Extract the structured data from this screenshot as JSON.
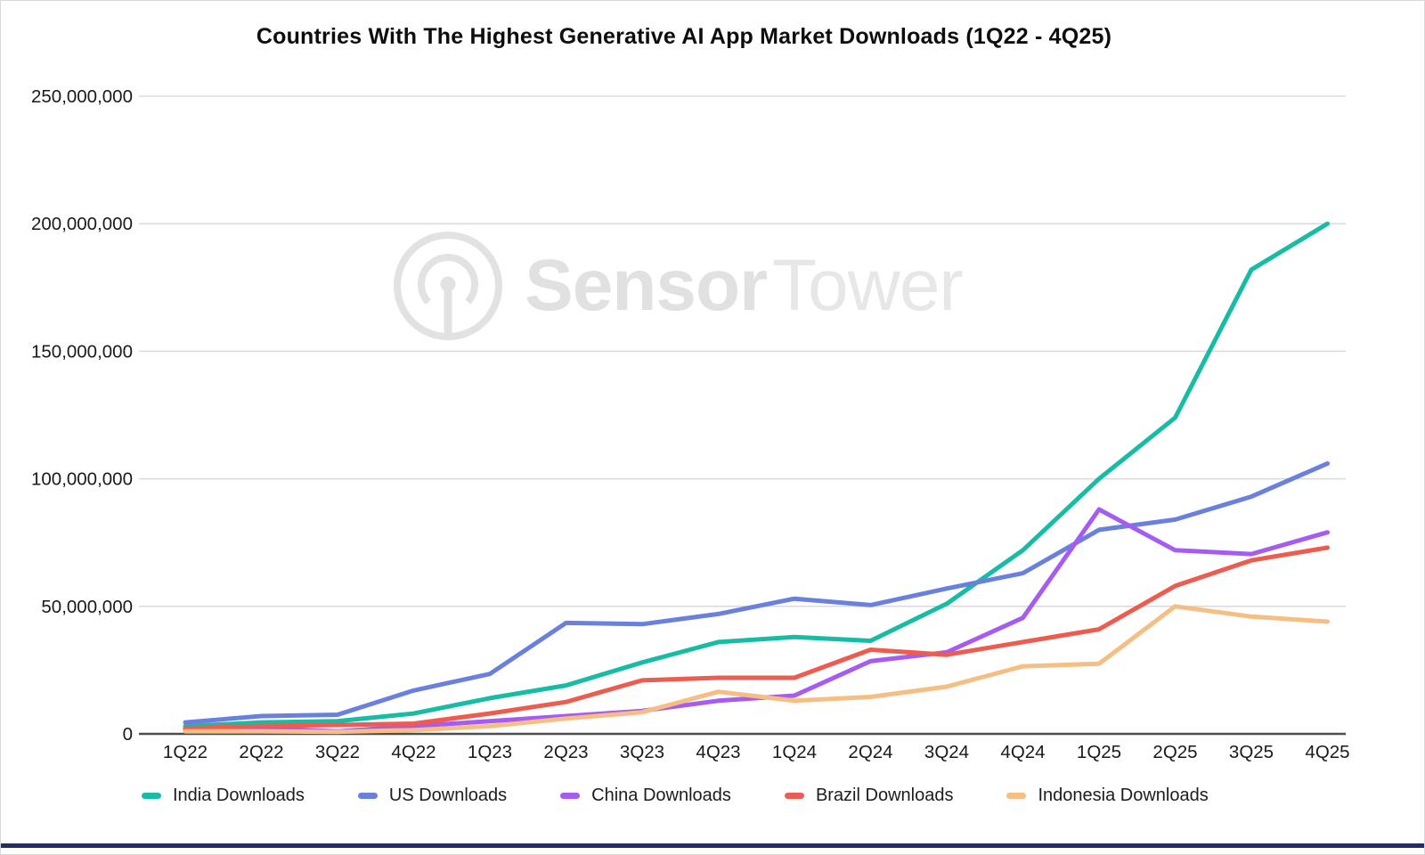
{
  "title": "Countries With The Highest Generative AI App Market Downloads (1Q22 - 4Q25)",
  "watermark": {
    "brand_bold": "Sensor",
    "brand_light": "Tower"
  },
  "chart_data": {
    "type": "line",
    "title": "Countries With The Highest Generative AI App Market Downloads (1Q22 - 4Q25)",
    "categories": [
      "1Q22",
      "2Q22",
      "3Q22",
      "4Q22",
      "1Q23",
      "2Q23",
      "3Q23",
      "4Q23",
      "1Q24",
      "2Q24",
      "3Q24",
      "4Q24",
      "1Q25",
      "2Q25",
      "3Q25",
      "4Q25"
    ],
    "y_axis": {
      "tick_values": [
        0,
        50000000,
        100000000,
        150000000,
        200000000,
        250000000
      ],
      "tick_labels": [
        "0",
        "50,000,000",
        "100,000,000",
        "150,000,000",
        "200,000,000",
        "250,000,000"
      ],
      "min": 0,
      "max": 250000000,
      "grid": true
    },
    "legend_position": "bottom",
    "series": [
      {
        "name": "India Downloads",
        "color": "#16BCA4",
        "values": [
          3000000,
          4500000,
          5000000,
          8000000,
          14000000,
          19000000,
          28000000,
          36000000,
          38000000,
          36500000,
          51000000,
          72000000,
          100000000,
          124000000,
          182000000,
          200000000
        ]
      },
      {
        "name": "US Downloads",
        "color": "#6A80DF",
        "values": [
          4500000,
          7000000,
          7500000,
          17000000,
          23500000,
          43500000,
          43000000,
          47000000,
          53000000,
          50500000,
          57000000,
          63000000,
          80000000,
          84000000,
          93000000,
          106000000
        ]
      },
      {
        "name": "China Downloads",
        "color": "#A65BF2",
        "values": [
          1500000,
          2200000,
          1000000,
          3000000,
          5000000,
          7000000,
          9000000,
          13000000,
          15000000,
          28500000,
          32000000,
          45500000,
          88000000,
          72000000,
          70500000,
          79000000
        ]
      },
      {
        "name": "Brazil Downloads",
        "color": "#EE5B4F",
        "values": [
          2200000,
          3100000,
          3500000,
          4000000,
          8000000,
          12500000,
          21000000,
          22000000,
          22000000,
          33000000,
          31000000,
          36000000,
          41000000,
          58000000,
          68000000,
          73000000
        ]
      },
      {
        "name": "Indonesia Downloads",
        "color": "#F6BE82",
        "values": [
          1000000,
          1000000,
          800000,
          1500000,
          3000000,
          6000000,
          8500000,
          16500000,
          13000000,
          14500000,
          18500000,
          26500000,
          27500000,
          50000000,
          46000000,
          44000000
        ]
      }
    ]
  }
}
